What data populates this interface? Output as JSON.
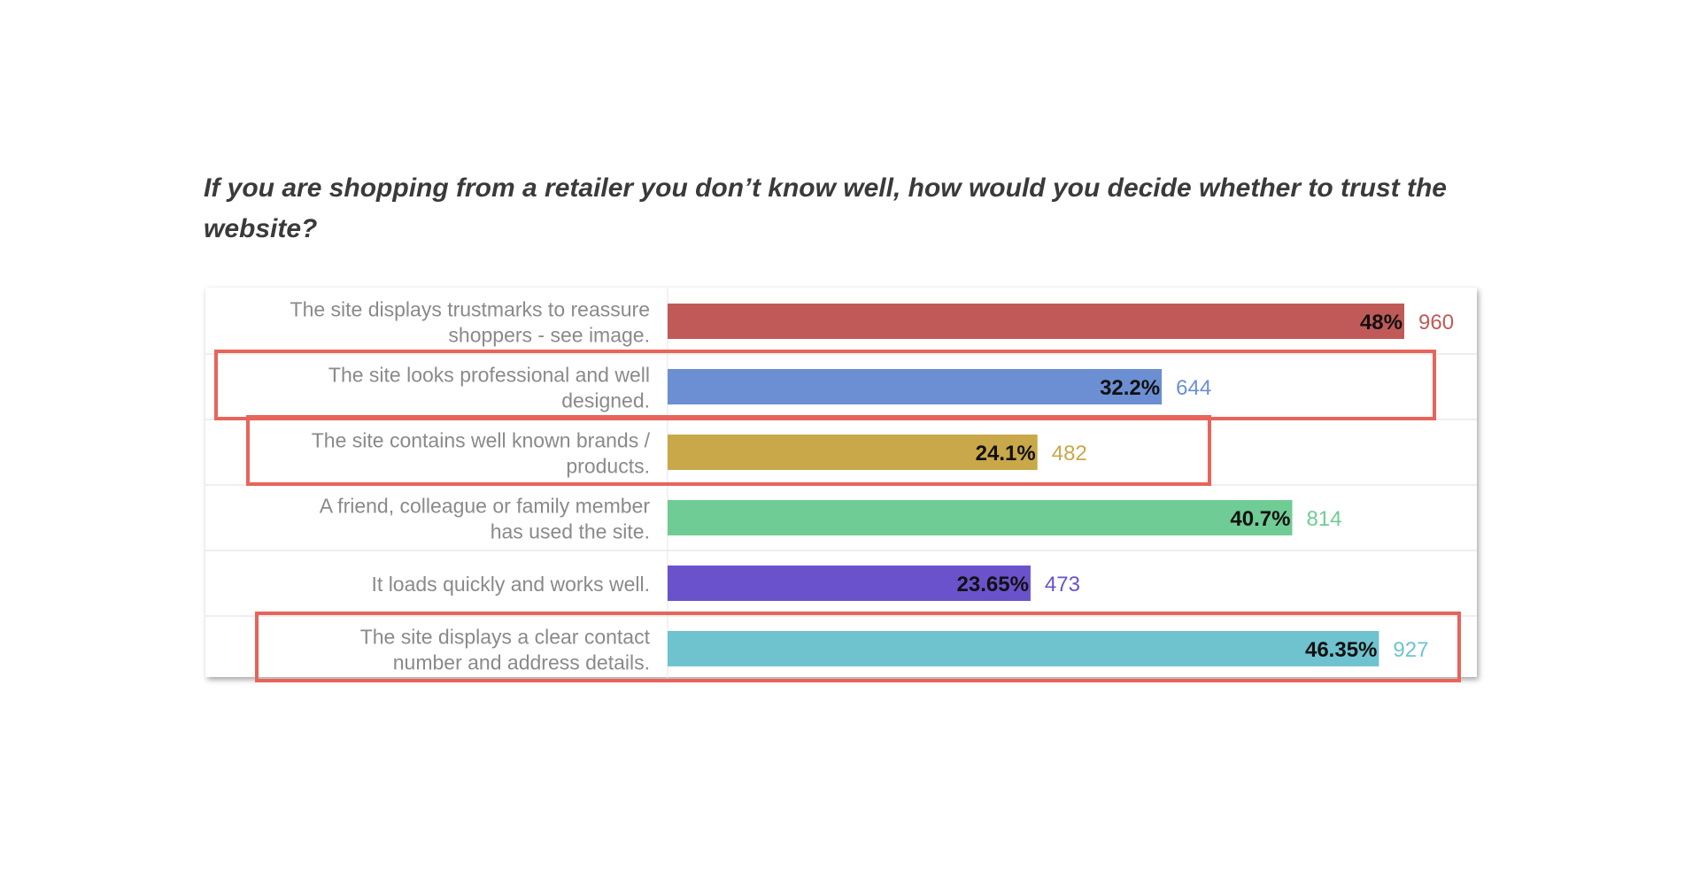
{
  "chart_data": {
    "type": "bar",
    "orientation": "horizontal",
    "title": "If you are shopping from a retailer you don’t know well, how would you decide whether to trust the website?",
    "xlim": [
      0,
      48
    ],
    "grid": false,
    "legend": "none",
    "categories": [
      [
        "The site displays trustmarks to reassure",
        "shoppers - see image."
      ],
      [
        "The site looks professional and well",
        "designed."
      ],
      [
        "The site contains well known brands /",
        "products."
      ],
      [
        "A friend, colleague or family member",
        "has used the site."
      ],
      [
        "It loads quickly and works well."
      ],
      [
        "The site displays a clear contact",
        "number and address details."
      ]
    ],
    "values": [
      48,
      32.2,
      24.1,
      40.7,
      23.65,
      46.35
    ],
    "percent_labels": [
      "48%",
      "32.2%",
      "24.1%",
      "40.7%",
      "23.65%",
      "46.35%"
    ],
    "counts": [
      "960",
      "644",
      "482",
      "814",
      "473",
      "927"
    ],
    "colors": [
      "#c05a58",
      "#6b8fd2",
      "#c9a84a",
      "#6fcc94",
      "#6a52cc",
      "#6fc3cf"
    ],
    "highlighted": [
      false,
      true,
      true,
      false,
      false,
      true
    ],
    "highlight_color": "#e8645a"
  }
}
